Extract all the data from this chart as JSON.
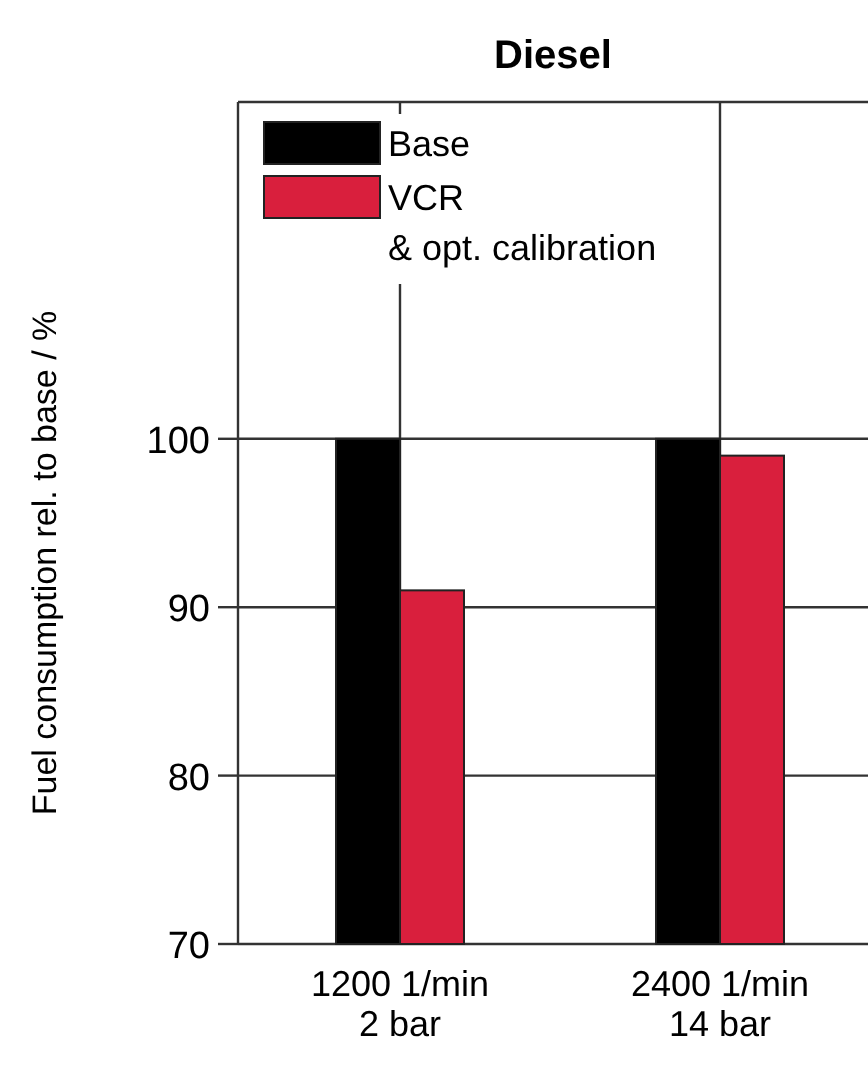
{
  "chart_data": {
    "type": "bar",
    "title": "Diesel",
    "ylabel": "Fuel consumption rel. to base / %",
    "categories": [
      "1200 1/min\n2 bar",
      "2400 1/min\n14 bar"
    ],
    "series": [
      {
        "name": "Base",
        "color": "#000000",
        "values": [
          100,
          100
        ]
      },
      {
        "name": "VCR\n& opt. calibration",
        "color": "#d91f3d",
        "values": [
          91,
          99
        ]
      }
    ],
    "ylim": [
      70,
      120
    ],
    "yticks": [
      70,
      80,
      90,
      100
    ],
    "grid": true,
    "legend": "top left"
  }
}
